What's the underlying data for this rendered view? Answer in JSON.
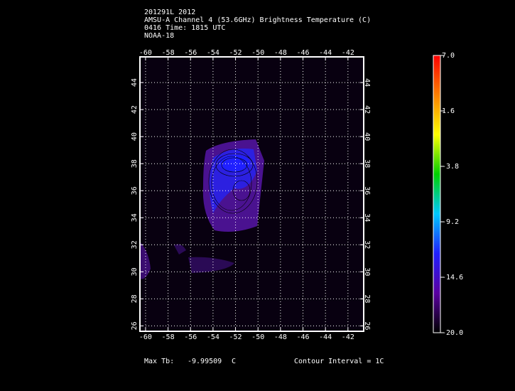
{
  "chart_data": {
    "type": "contour-map",
    "title_lines": [
      "201291L 2012",
      "AMSU-A Channel 4 (53.6GHz) Brightness Temperature (C)",
      "0416 Time: 1815 UTC",
      "NOAA-18"
    ],
    "xlim": [
      -60.5,
      -40.6
    ],
    "xticks": [
      -60,
      -58,
      -56,
      -54,
      -52,
      -50,
      -48,
      -46,
      -44,
      -42
    ],
    "ylim": [
      25.6,
      45.9
    ],
    "yticks": [
      26,
      28,
      30,
      32,
      34,
      36,
      38,
      40,
      42,
      44
    ],
    "grid": true,
    "colorbar": {
      "lim": [
        -20,
        7
      ],
      "ticks": [
        {
          "value": 7,
          "label": "7.0"
        },
        {
          "value": 1.6,
          "label": "1.6"
        },
        {
          "value": -3.8,
          "label": "-3.8"
        },
        {
          "value": -9.2,
          "label": "-9.2"
        },
        {
          "value": -14.6,
          "label": "-14.6"
        },
        {
          "value": -20,
          "label": "-20.0"
        }
      ],
      "colors": [
        "#000000",
        "#5a00a0",
        "#2020ff",
        "#00c8ff",
        "#00d000",
        "#ffff00",
        "#ff8000",
        "#ff0000"
      ]
    },
    "max_label": "Max Tb:",
    "max_value": "-9.99509",
    "max_unit": "C",
    "contour_interval": "Contour Interval = 1C"
  }
}
